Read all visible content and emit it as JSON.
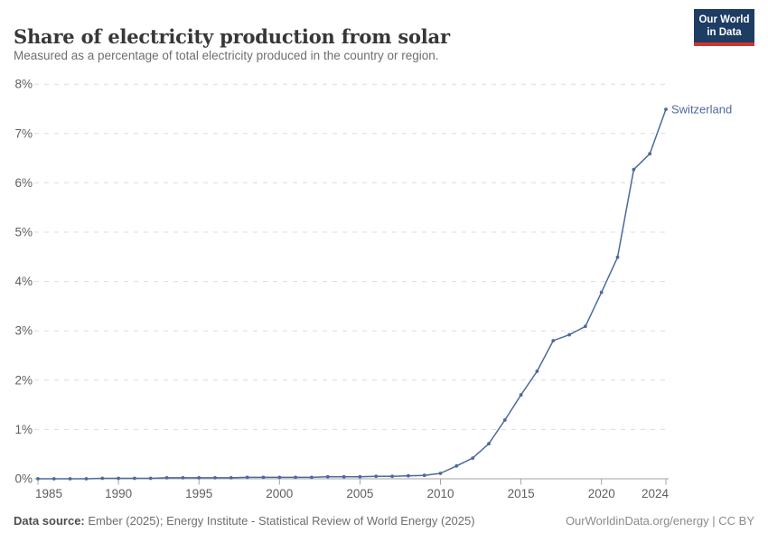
{
  "header": {
    "title": "Share of electricity production from solar",
    "subtitle": "Measured as a percentage of total electricity produced in the country or region.",
    "logo_line1": "Our World",
    "logo_line2": "in Data"
  },
  "chart_data": {
    "type": "line",
    "title": "Share of electricity production from solar",
    "xlabel": "",
    "ylabel": "",
    "x": [
      1985,
      1986,
      1987,
      1988,
      1989,
      1990,
      1991,
      1992,
      1993,
      1994,
      1995,
      1996,
      1997,
      1998,
      1999,
      2000,
      2001,
      2002,
      2003,
      2004,
      2005,
      2006,
      2007,
      2008,
      2009,
      2010,
      2011,
      2012,
      2013,
      2014,
      2015,
      2016,
      2017,
      2018,
      2019,
      2020,
      2021,
      2022,
      2023,
      2024
    ],
    "series": [
      {
        "name": "Switzerland",
        "color": "#4C6A9C",
        "values": [
          0.0,
          0.0,
          0.0,
          0.0,
          0.01,
          0.01,
          0.01,
          0.01,
          0.02,
          0.02,
          0.02,
          0.02,
          0.02,
          0.03,
          0.03,
          0.03,
          0.03,
          0.03,
          0.04,
          0.04,
          0.04,
          0.05,
          0.05,
          0.06,
          0.07,
          0.11,
          0.26,
          0.42,
          0.71,
          1.19,
          1.7,
          2.18,
          2.8,
          2.92,
          3.09,
          3.78,
          4.49,
          6.27,
          6.59,
          7.49
        ]
      }
    ],
    "xlim": [
      1985,
      2024
    ],
    "ylim": [
      0,
      8
    ],
    "x_tick_years": [
      1985,
      1990,
      1995,
      2000,
      2005,
      2010,
      2015,
      2020,
      2024
    ],
    "y_tick_labels": [
      "0%",
      "1%",
      "2%",
      "3%",
      "4%",
      "5%",
      "6%",
      "7%",
      "8%"
    ],
    "grid": "horizontal dashed gridlines",
    "legend_position": "label at end of line"
  },
  "footer": {
    "source_label": "Data source:",
    "source_text": " Ember (2025); Energy Institute - Statistical Review of World Energy (2025)",
    "license": "OurWorldinData.org/energy | CC BY"
  },
  "colors": {
    "line": "#4C6A9C",
    "gridline": "#dcdcdc",
    "axis": "#a3a3a3",
    "tick_label": "#5f5f5f",
    "logo_bg": "#1d3d63",
    "logo_bar": "#d0342c"
  }
}
